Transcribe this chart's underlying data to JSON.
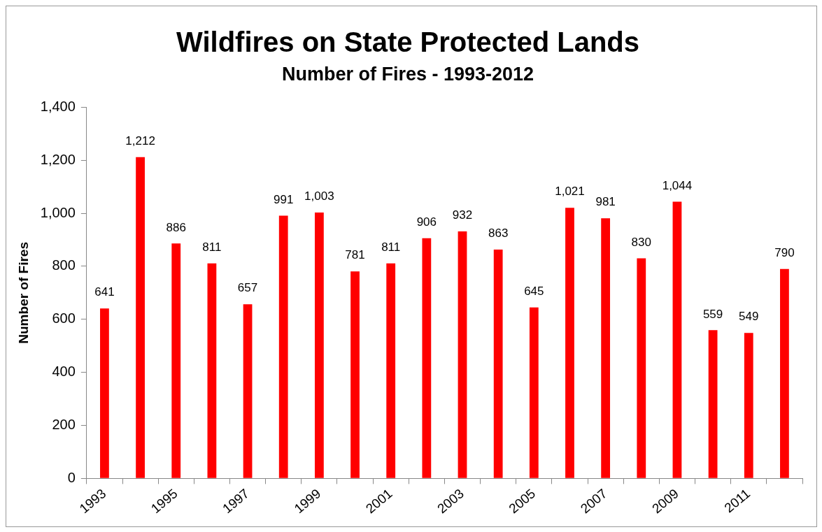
{
  "chart_data": {
    "type": "bar",
    "title": "Wildfires on State Protected Lands",
    "subtitle": "Number of Fires - 1993-2012",
    "ylabel": "Number of Fires",
    "categories": [
      "1993",
      null,
      "1995",
      null,
      "1997",
      null,
      "1999",
      null,
      "2001",
      null,
      "2003",
      null,
      "2005",
      null,
      "2007",
      null,
      "2009",
      null,
      "2011",
      null
    ],
    "values": [
      641,
      1212,
      886,
      811,
      657,
      991,
      1003,
      781,
      811,
      906,
      932,
      863,
      645,
      1021,
      981,
      830,
      1044,
      559,
      549,
      790
    ],
    "value_labels": [
      "641",
      "1,212",
      "886",
      "811",
      "657",
      "991",
      "1,003",
      "781",
      "811",
      "906",
      "932",
      "863",
      "645",
      "1,021",
      "981",
      "830",
      "1,044",
      "559",
      "549",
      "790"
    ],
    "color": "#ff0000",
    "ylim": [
      0,
      1400
    ],
    "yticks": [
      0,
      200,
      400,
      600,
      800,
      {
        "value": 1000,
        "label": "1,000"
      },
      {
        "value": 1200,
        "label": "1,200"
      },
      {
        "value": 1400,
        "label": "1,400"
      }
    ],
    "grid": false,
    "legend": false
  }
}
